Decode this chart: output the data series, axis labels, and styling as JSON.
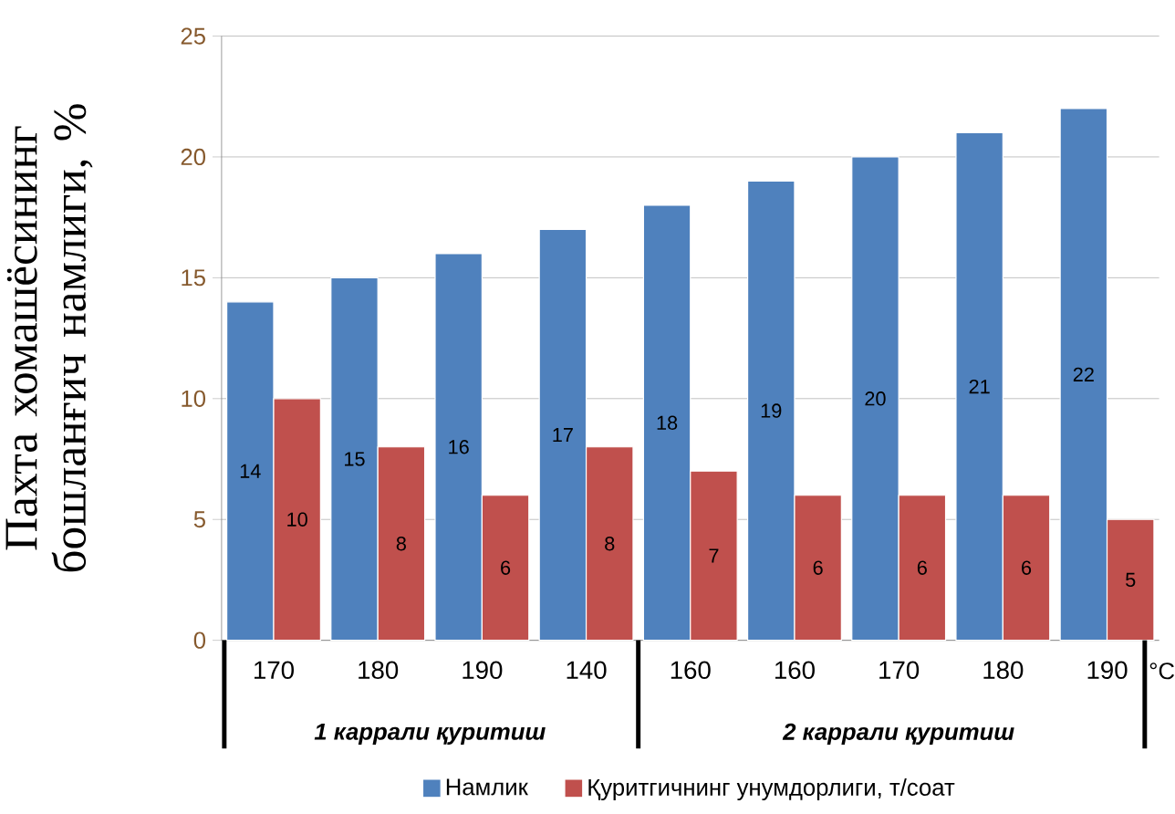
{
  "chart_data": {
    "type": "bar",
    "ylabel": "Пахта хомашёсининг бошланғич намлиги, %",
    "categories": [
      "170",
      "180",
      "190",
      "140",
      "160",
      "160",
      "170",
      "180",
      "190"
    ],
    "series": [
      {
        "name": "Намлик",
        "color": "#4f81bd",
        "values": [
          14,
          15,
          16,
          17,
          18,
          19,
          20,
          21,
          22
        ]
      },
      {
        "name": "Қуритгичнинг унумдорлиги, т/соат",
        "color": "#c0504d",
        "values": [
          10,
          8,
          6,
          8,
          7,
          6,
          6,
          6,
          5
        ]
      }
    ],
    "ylim": [
      0,
      25
    ],
    "yticks": [
      0,
      5,
      10,
      15,
      20,
      25
    ],
    "grid": "y",
    "legend": "bottom",
    "data_labels": true,
    "annotations": [
      "1 каррали қуритиш",
      "2 каррали қуритиш",
      "°C"
    ]
  }
}
